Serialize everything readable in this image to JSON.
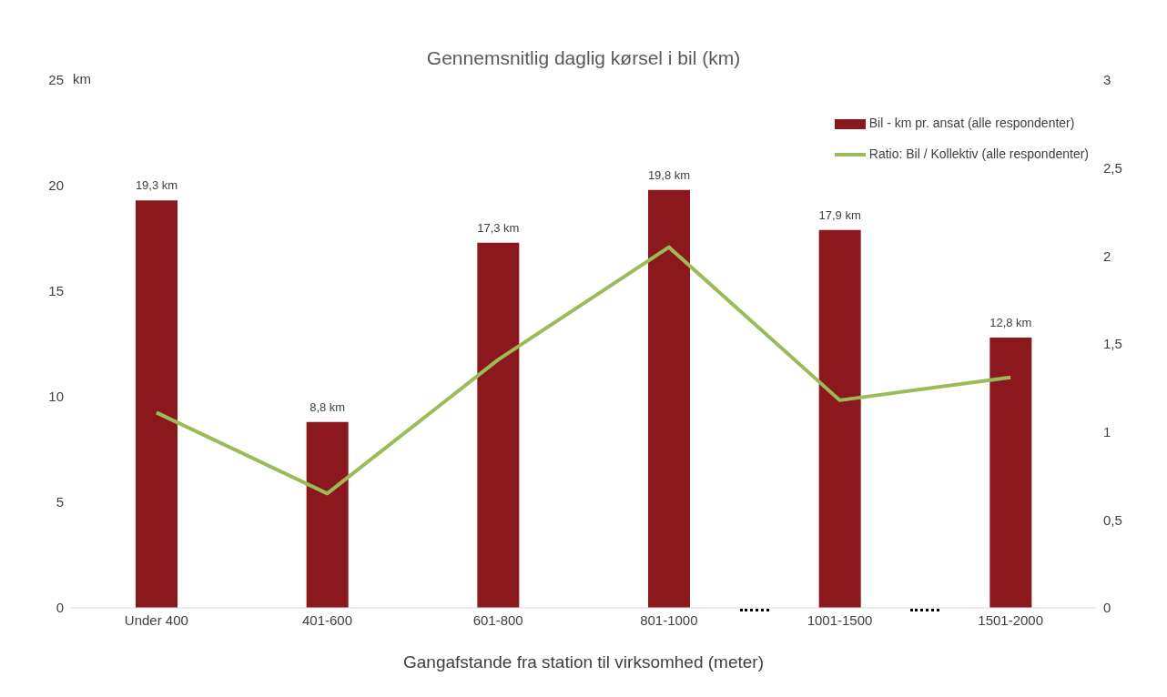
{
  "chart_data": {
    "type": "bar",
    "title": "Gennemsnitlig daglig kørsel i bil (km)",
    "xlabel": "Gangafstande fra station til virksomhed (meter)",
    "ylabel": "km",
    "categories": [
      "Under 400",
      "401-600",
      "601-800",
      "801-1000",
      "1001-1500",
      "1501-2000"
    ],
    "series": [
      {
        "name": "Bil - km pr. ansat (alle respondenter)",
        "color": "#8b181c",
        "values": [
          19.3,
          8.8,
          17.3,
          19.8,
          17.9,
          12.8
        ],
        "value_labels": [
          "19,3 km",
          "8,8 km",
          "17,3 km",
          "19,8 km",
          "17,9 km",
          "12,8 km"
        ]
      },
      {
        "name": "Ratio: Bil / Kollektiv (alle respondenter)",
        "type": "line",
        "axis": "y2",
        "color": "#9bbb59",
        "values": [
          1.11,
          0.65,
          1.41,
          2.05,
          1.18,
          1.31
        ]
      }
    ],
    "ylim": [
      0,
      25
    ],
    "yticks": [
      0,
      5,
      10,
      15,
      20,
      25
    ],
    "y2lim": [
      0,
      3
    ],
    "y2ticks": [
      0,
      {
        "value": 0.5,
        "label": "0,5"
      },
      1,
      {
        "value": 1.5,
        "label": "1,5"
      },
      2,
      {
        "value": 2.5,
        "label": "2,5"
      },
      3
    ],
    "grid": false,
    "legend": "top right",
    "marker": "none",
    "line_style": "solid"
  }
}
